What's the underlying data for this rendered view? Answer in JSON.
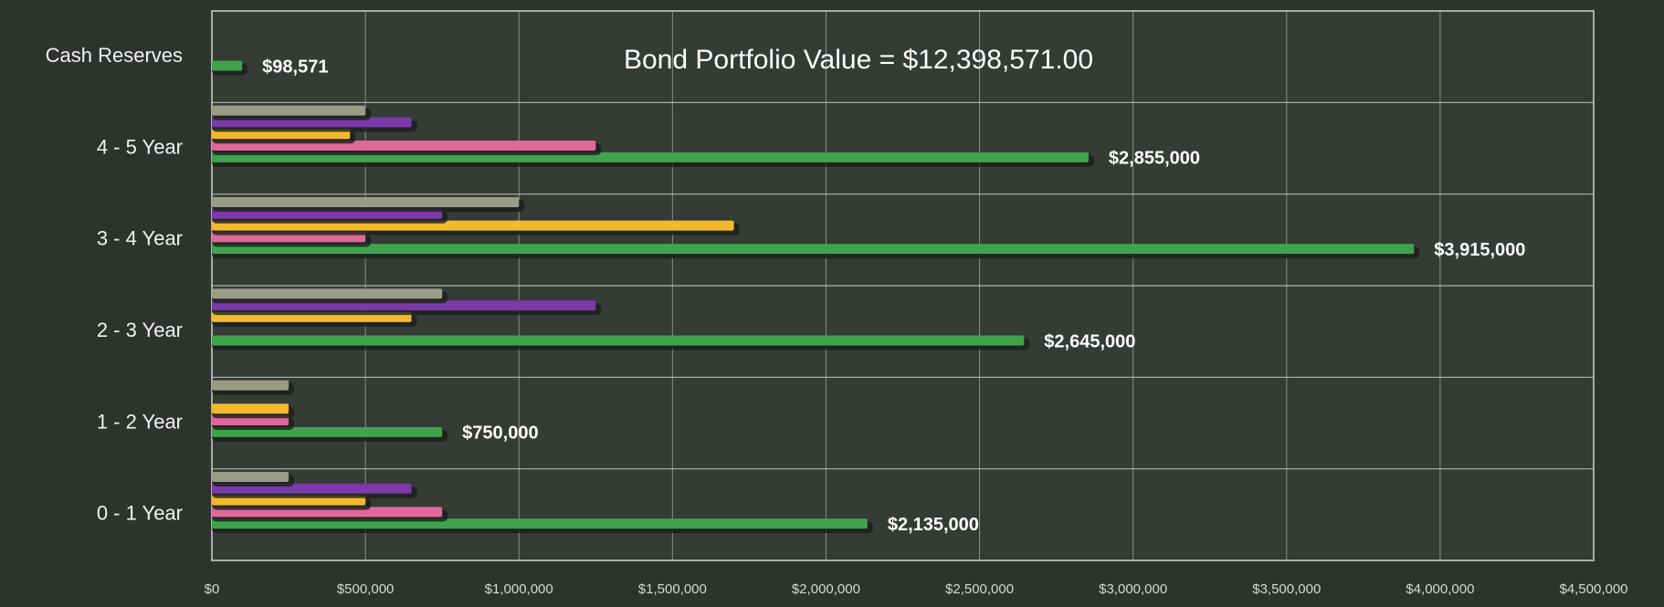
{
  "chart_data": {
    "type": "bar",
    "orientation": "horizontal",
    "title": "Bond Portfolio Value = $12,398,571.00",
    "categories": [
      "0 - 1 Year",
      "1 - 2 Year",
      "2 - 3 Year",
      "3 - 4 Year",
      "4 - 5 Year",
      "Cash Reserves"
    ],
    "series": [
      {
        "color": "#3fa34d",
        "values": [
          2135000,
          750000,
          2645000,
          3915000,
          2855000,
          98571
        ],
        "value_labels": [
          "$2,135,000",
          "$750,000",
          "$2,645,000",
          "$3,915,000",
          "$2,855,000",
          "$98,571"
        ]
      },
      {
        "color": "#e0679a",
        "values": [
          750000,
          250000,
          0,
          500000,
          1250000,
          0
        ]
      },
      {
        "color": "#f2b92c",
        "values": [
          500000,
          250000,
          650000,
          1700000,
          450000,
          0
        ]
      },
      {
        "color": "#7a3aa8",
        "values": [
          650000,
          0,
          1250000,
          750000,
          650000,
          0
        ]
      },
      {
        "color": "#9a9c86",
        "values": [
          250000,
          250000,
          750000,
          1000000,
          500000,
          0
        ]
      }
    ],
    "xlim": [
      0,
      4500000
    ],
    "xticks": [
      {
        "value": 0,
        "label": "$0"
      },
      {
        "value": 500000,
        "label": "$500,000"
      },
      {
        "value": 1000000,
        "label": "$1,000,000"
      },
      {
        "value": 1500000,
        "label": "$1,500,000"
      },
      {
        "value": 2000000,
        "label": "$2,000,000"
      },
      {
        "value": 2500000,
        "label": "$2,500,000"
      },
      {
        "value": 3000000,
        "label": "$3,000,000"
      },
      {
        "value": 3500000,
        "label": "$3,500,000"
      },
      {
        "value": 4000000,
        "label": "$4,000,000"
      },
      {
        "value": 4500000,
        "label": "$4,500,000"
      }
    ],
    "grid": true
  }
}
